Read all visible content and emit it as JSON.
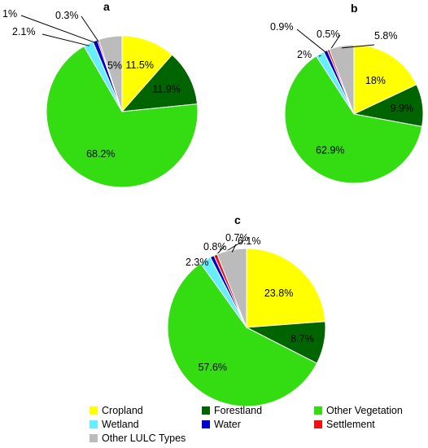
{
  "chart_data": [
    {
      "type": "pie",
      "panel_label": "a",
      "title": "",
      "slices": [
        {
          "category": "Cropland",
          "value": 11.5,
          "label": "11.5%"
        },
        {
          "category": "Forestland",
          "value": 11.9,
          "label": "11.9%"
        },
        {
          "category": "Other Vegetation",
          "value": 68.2,
          "label": "68.2%"
        },
        {
          "category": "Wetland",
          "value": 2.1,
          "label": "2.1%"
        },
        {
          "category": "Water",
          "value": 1,
          "label": "1%"
        },
        {
          "category": "Settlement",
          "value": 0.3,
          "label": "0.3%"
        },
        {
          "category": "Other LULC Types",
          "value": 5,
          "label": "5%"
        }
      ]
    },
    {
      "type": "pie",
      "panel_label": "b",
      "title": "",
      "slices": [
        {
          "category": "Cropland",
          "value": 18,
          "label": "18%"
        },
        {
          "category": "Forestland",
          "value": 9.9,
          "label": "9.9%"
        },
        {
          "category": "Other Vegetation",
          "value": 62.9,
          "label": "62.9%"
        },
        {
          "category": "Wetland",
          "value": 2,
          "label": "2%"
        },
        {
          "category": "Water",
          "value": 0.9,
          "label": "0.9%"
        },
        {
          "category": "Settlement",
          "value": 0.5,
          "label": "0.5%"
        },
        {
          "category": "Other LULC Types",
          "value": 5.8,
          "label": "5.8%"
        }
      ]
    },
    {
      "type": "pie",
      "panel_label": "c",
      "title": "",
      "slices": [
        {
          "category": "Cropland",
          "value": 23.8,
          "label": "23.8%"
        },
        {
          "category": "Forestland",
          "value": 8.7,
          "label": "8.7%"
        },
        {
          "category": "Other Vegetation",
          "value": 57.6,
          "label": "57.6%"
        },
        {
          "category": "Wetland",
          "value": 2.3,
          "label": "2.3%"
        },
        {
          "category": "Water",
          "value": 0.8,
          "label": "0.8%"
        },
        {
          "category": "Settlement",
          "value": 0.7,
          "label": "0.7%"
        },
        {
          "category": "Other LULC Types",
          "value": 6.1,
          "label": "6.1%"
        }
      ]
    }
  ],
  "legend": {
    "placement": "bottom",
    "items": [
      {
        "label": "Cropland",
        "color": "#ffff00"
      },
      {
        "label": "Forestland",
        "color": "#006400"
      },
      {
        "label": "Other Vegetation",
        "color": "#33dd11"
      },
      {
        "label": "Wetland",
        "color": "#66eeff"
      },
      {
        "label": "Water",
        "color": "#0000cc"
      },
      {
        "label": "Settlement",
        "color": "#ee1111"
      },
      {
        "label": "Other LULC Types",
        "color": "#bbbbbb"
      }
    ]
  }
}
